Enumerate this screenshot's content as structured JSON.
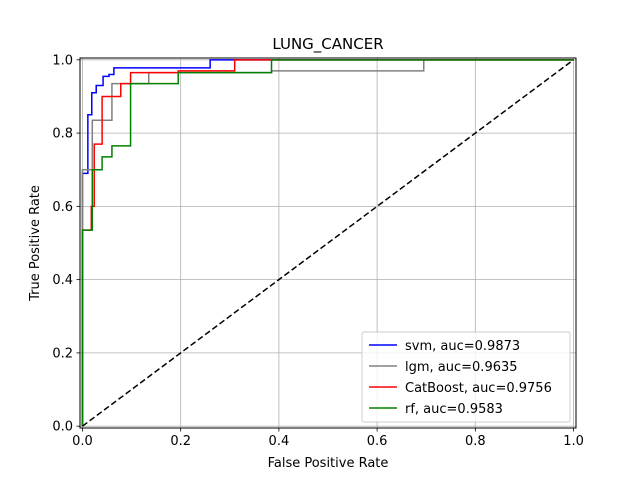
{
  "chart_data": {
    "type": "line",
    "title": "LUNG_CANCER",
    "xlabel": "False Positive Rate",
    "ylabel": "True Positive Rate",
    "xlim": [
      -0.005,
      1.005
    ],
    "ylim": [
      -0.005,
      1.005
    ],
    "x_ticks": [
      "0.0",
      "0.2",
      "0.4",
      "0.6",
      "0.8",
      "1.0"
    ],
    "y_ticks": [
      "0.0",
      "0.2",
      "0.4",
      "0.6",
      "0.8",
      "1.0"
    ],
    "grid": true,
    "legend_position": "lower-right",
    "series": [
      {
        "name": "svm, auc=0.9873",
        "color": "#0000ff",
        "x": [
          0,
          0,
          0.011,
          0.011,
          0.019,
          0.019,
          0.028,
          0.028,
          0.042,
          0.042,
          0.054,
          0.054,
          0.064,
          0.064,
          0.26,
          0.26,
          1
        ],
        "y": [
          0,
          0.69,
          0.69,
          0.85,
          0.85,
          0.91,
          0.91,
          0.93,
          0.93,
          0.955,
          0.955,
          0.96,
          0.96,
          0.978,
          0.978,
          1.0,
          1.0
        ]
      },
      {
        "name": "lgm, auc=0.9635",
        "color": "#808080",
        "x": [
          0,
          0,
          0.02,
          0.02,
          0.06,
          0.06,
          0.135,
          0.135,
          0.385,
          0.385,
          0.695,
          0.695,
          1
        ],
        "y": [
          0,
          0.7,
          0.7,
          0.835,
          0.835,
          0.935,
          0.935,
          0.965,
          0.965,
          0.97,
          0.97,
          1.0,
          1.0
        ]
      },
      {
        "name": "CatBoost, auc=0.9756",
        "color": "#ff0000",
        "x": [
          0,
          0,
          0.018,
          0.018,
          0.024,
          0.024,
          0.04,
          0.04,
          0.056,
          0.056,
          0.078,
          0.078,
          0.098,
          0.098,
          0.195,
          0.195,
          0.31,
          0.31,
          1
        ],
        "y": [
          0,
          0.535,
          0.535,
          0.6,
          0.6,
          0.77,
          0.77,
          0.9,
          0.9,
          0.9,
          0.9,
          0.935,
          0.935,
          0.965,
          0.965,
          0.97,
          0.97,
          1.0,
          1.0
        ]
      },
      {
        "name": "rf, auc=0.9583",
        "color": "#008000",
        "x": [
          0,
          0,
          0.02,
          0.02,
          0.04,
          0.04,
          0.06,
          0.06,
          0.098,
          0.098,
          0.195,
          0.195,
          0.385,
          0.385,
          1
        ],
        "y": [
          0,
          0.535,
          0.535,
          0.7,
          0.7,
          0.735,
          0.735,
          0.765,
          0.765,
          0.935,
          0.935,
          0.965,
          0.965,
          1.0,
          1.0
        ]
      }
    ],
    "reference_line": {
      "x": [
        0,
        1
      ],
      "y": [
        0,
        1
      ],
      "color": "#000000",
      "style": "dashed"
    }
  }
}
